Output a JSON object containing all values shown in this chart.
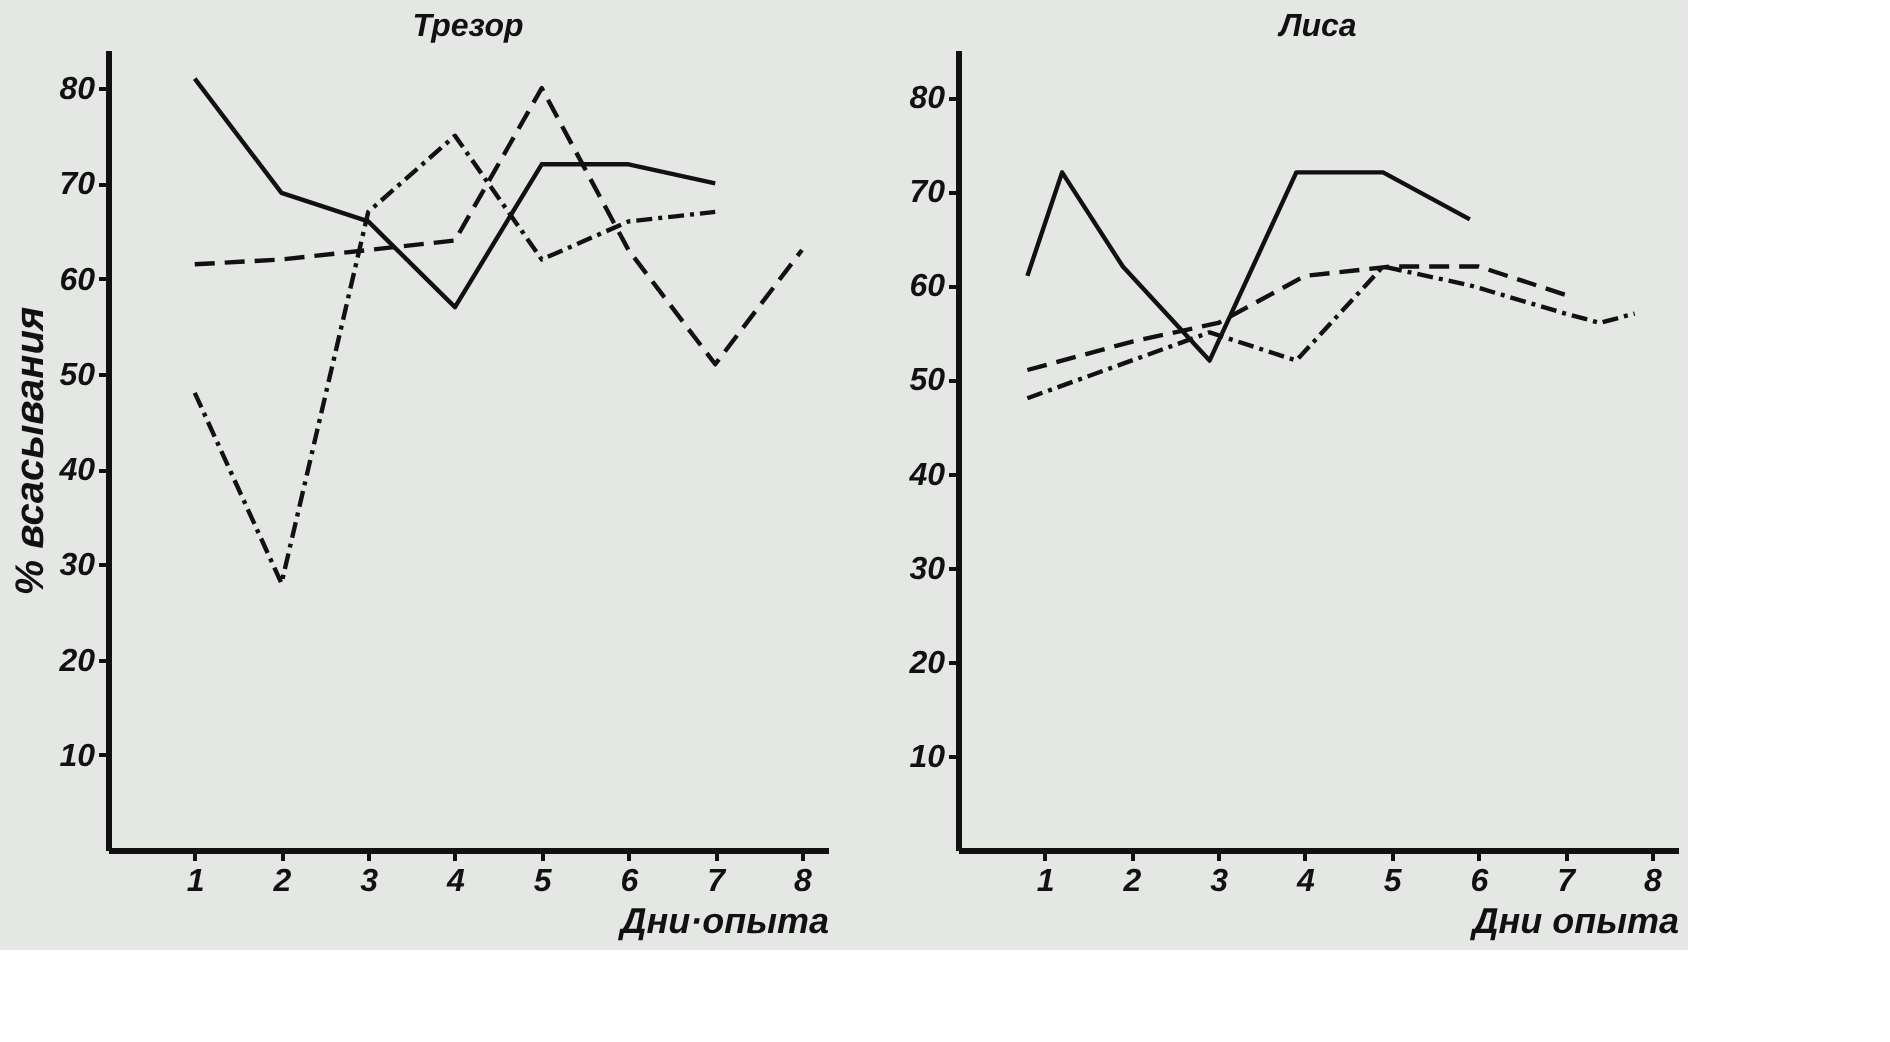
{
  "chart_data": [
    {
      "type": "line",
      "title": "Трезор",
      "xlabel": "Дни·опыта",
      "ylabel": "% всасывания",
      "xlim": [
        0,
        8.3
      ],
      "xticks": [
        1,
        2,
        3,
        4,
        5,
        6,
        7,
        8
      ],
      "ylim": [
        0,
        84
      ],
      "yticks": [
        10,
        20,
        30,
        40,
        50,
        60,
        70,
        80
      ],
      "grid": false,
      "marker": "none",
      "series": [
        {
          "color": "#111111",
          "line_style": "solid",
          "x": [
            1,
            2,
            3,
            4,
            5,
            6,
            7
          ],
          "values": [
            81,
            69,
            66,
            57,
            72,
            72,
            70
          ]
        },
        {
          "color": "#111111",
          "line_style": "dashed",
          "x": [
            1,
            2,
            3,
            4,
            5,
            6,
            7,
            8
          ],
          "values": [
            61.5,
            62,
            63,
            64,
            80,
            63,
            51,
            63
          ]
        },
        {
          "color": "#111111",
          "line_style": "dashdot",
          "x": [
            1,
            2,
            3,
            4,
            5,
            6,
            7
          ],
          "values": [
            48,
            28,
            67,
            75,
            62,
            66,
            67
          ]
        }
      ]
    },
    {
      "type": "line",
      "title": "Лиса",
      "xlabel": "Дни опыта",
      "xlim": [
        0,
        8.3
      ],
      "xticks": [
        1,
        2,
        3,
        4,
        5,
        6,
        7,
        8
      ],
      "ylim": [
        0,
        85
      ],
      "yticks": [
        10,
        20,
        30,
        40,
        50,
        60,
        70,
        80
      ],
      "grid": false,
      "marker": "none",
      "series": [
        {
          "color": "#111111",
          "line_style": "solid",
          "x": [
            0.8,
            1.2,
            1.9,
            2.9,
            3.9,
            4.9,
            5.9
          ],
          "values": [
            61,
            72,
            62,
            52,
            72,
            72,
            67
          ]
        },
        {
          "color": "#111111",
          "line_style": "dashed",
          "x": [
            0.8,
            2,
            3,
            4,
            5,
            6,
            7
          ],
          "values": [
            51,
            54,
            56,
            61,
            62,
            62,
            59
          ]
        },
        {
          "color": "#111111",
          "line_style": "dashdot",
          "x": [
            0.8,
            2.9,
            3.9,
            4.9,
            5.9,
            7,
            7.4,
            7.8
          ],
          "values": [
            48,
            55,
            52,
            62,
            60,
            57,
            56,
            57
          ]
        }
      ]
    }
  ]
}
